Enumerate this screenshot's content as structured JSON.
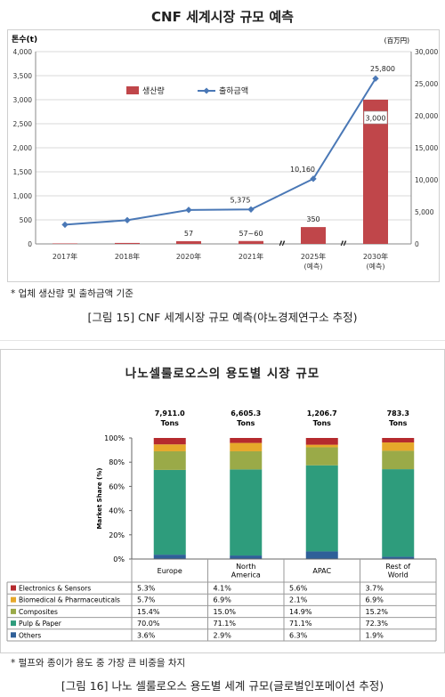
{
  "chart1": {
    "title": "CNF 세계시장 규모 예측",
    "left_axis_unit": "톤수(t)",
    "right_axis_unit": "(百万円)",
    "legend_bar": "생산량",
    "legend_line": "출하금액",
    "note": "* 업체 생산량 및 출하금액 기준",
    "caption": "[그림 15] CNF 세계시장 규모 예측(야노경제연구소 추정)"
  },
  "chart2": {
    "title": "나노셀룰로오스의 용도별 시장 규모",
    "yaxis_label": "Market Share (%)",
    "note": "* 펄프와 종이가 용도 중 가장 큰 비중을 차지",
    "caption": "[그림 16] 나노 셀룰로오스 용도별 세계 규모(글로벌인포메이션 추정)"
  },
  "chart_data": [
    {
      "type": "bar",
      "title": "CNF 세계시장 규모 예측",
      "categories": [
        "2017年",
        "2018年",
        "2020年",
        "2021年",
        "2025年\n(예측)",
        "2030年\n(예측)"
      ],
      "series": [
        {
          "name": "생산량",
          "type": "bar",
          "axis": "left",
          "values": [
            10,
            20,
            57,
            60,
            350,
            3000
          ],
          "data_labels": [
            "",
            "",
            "57",
            "57~60",
            "350",
            "3,000"
          ]
        },
        {
          "name": "출하금액",
          "type": "line",
          "axis": "right",
          "values": [
            3000,
            3700,
            5300,
            5375,
            10160,
            25800
          ],
          "data_labels": [
            "",
            "",
            "",
            "5,375",
            "10,160",
            "25,800"
          ]
        }
      ],
      "ylabel": "톤수(t)",
      "ylabel_right": "(百万円)",
      "ylim": [
        0,
        4000
      ],
      "ylim_right": [
        0,
        30000
      ],
      "yticks": [
        "0",
        "500",
        "1,000",
        "1,500",
        "2,000",
        "2,500",
        "3,000",
        "3,500",
        "4,000"
      ],
      "yticks_right": [
        "0",
        "5,000",
        "10,000",
        "15,000",
        "20,000",
        "25,000",
        "30,000"
      ],
      "axis_break": "between 2021年 and 2025年, and between 2025年 and 2030年",
      "grid": true,
      "legend": "top-left",
      "colors": {
        "bar": "#c0464a",
        "line": "#4a78b6"
      }
    },
    {
      "type": "bar",
      "stacked": true,
      "title": "나노셀룰로오스의 용도별 시장 규모",
      "categories": [
        "Europe",
        "North America",
        "APAC",
        "Rest of World"
      ],
      "category_labels": [
        [
          "Europe"
        ],
        [
          "North",
          "America"
        ],
        [
          "APAC"
        ],
        [
          "Rest of",
          "World"
        ]
      ],
      "totals": [
        [
          "7,911.0",
          "Tons"
        ],
        [
          "6,605.3",
          "Tons"
        ],
        [
          "1,206.7",
          "Tons"
        ],
        [
          "783.3",
          "Tons"
        ]
      ],
      "series": [
        {
          "name": "Electronics & Sensors",
          "color": "#b52a2e",
          "values": [
            5.3,
            4.1,
            5.6,
            3.7
          ],
          "labels": [
            "5.3%",
            "4.1%",
            "5.6%",
            "3.7%"
          ]
        },
        {
          "name": "Biomedical & Pharmaceuticals",
          "color": "#e6a82a",
          "values": [
            5.7,
            6.9,
            2.1,
            6.9
          ],
          "labels": [
            "5.7%",
            "6.9%",
            "2.1%",
            "6.9%"
          ]
        },
        {
          "name": "Composites",
          "color": "#9aaa48",
          "values": [
            15.4,
            15.0,
            14.9,
            15.2
          ],
          "labels": [
            "15.4%",
            "15.0%",
            "14.9%",
            "15.2%"
          ]
        },
        {
          "name": "Pulp & Paper",
          "color": "#2e9c7c",
          "values": [
            70.0,
            71.1,
            71.1,
            72.3
          ],
          "labels": [
            "70.0%",
            "71.1%",
            "71.1%",
            "72.3%"
          ]
        },
        {
          "name": "Others",
          "color": "#2f5f98",
          "values": [
            3.6,
            2.9,
            6.3,
            1.9
          ],
          "labels": [
            "3.6%",
            "2.9%",
            "6.3%",
            "1.9%"
          ]
        }
      ],
      "ylabel": "Market Share (%)",
      "ylim": [
        0,
        100
      ],
      "yticks": [
        "0%",
        "20%",
        "40%",
        "60%",
        "80%",
        "100%"
      ],
      "grid": false,
      "legend": "data table below"
    }
  ]
}
